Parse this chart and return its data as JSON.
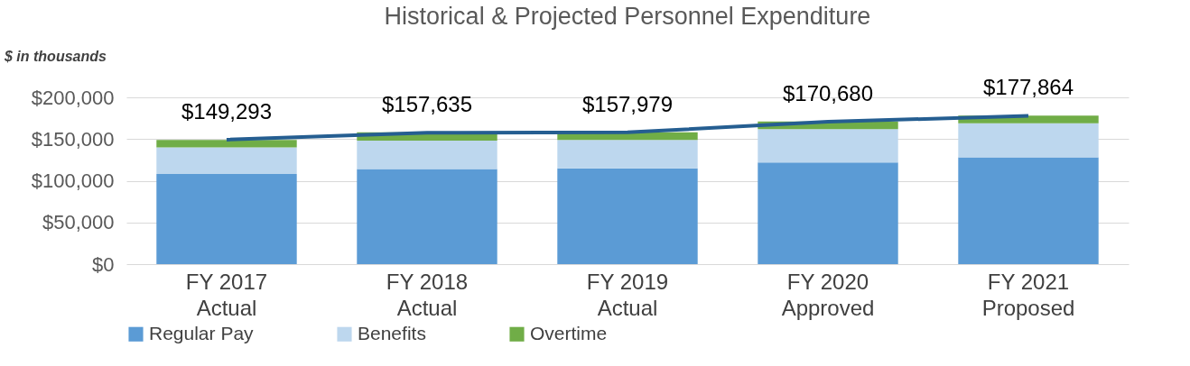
{
  "chart_data": {
    "type": "bar",
    "stacked": true,
    "title": "Historical & Projected Personnel Expenditure",
    "annotations": [
      "$ in thousands"
    ],
    "categories": [
      "FY 2017\nActual",
      "FY 2018\nActual",
      "FY 2019\nActual",
      "FY 2020\nApproved",
      "FY 2021\nProposed"
    ],
    "series": [
      {
        "name": "Regular Pay",
        "color": "#5b9bd5",
        "values": [
          108000,
          114000,
          115000,
          122000,
          128000
        ]
      },
      {
        "name": "Benefits",
        "color": "#bdd7ee",
        "values": [
          32000,
          34000,
          34000,
          40000,
          41000
        ]
      },
      {
        "name": "Overtime",
        "color": "#70ad47",
        "values": [
          9000,
          10000,
          9000,
          9000,
          9000
        ]
      },
      {
        "type": "line",
        "color": "#255e91",
        "values": [
          149293,
          157635,
          157979,
          170680,
          177864
        ],
        "value_labels": [
          "$149,293",
          "$157,635",
          "$157,979",
          "$170,680",
          "$177,864"
        ]
      }
    ],
    "ylim": [
      0,
      200000
    ],
    "yticks": [
      {
        "value": 0,
        "label": "$0"
      },
      {
        "value": 50000,
        "label": "$50,000"
      },
      {
        "value": 100000,
        "label": "$100,000"
      },
      {
        "value": 150000,
        "label": "$150,000"
      },
      {
        "value": 200000,
        "label": "$200,000"
      }
    ],
    "grid": "y",
    "legend": "bottom",
    "marker": "none"
  }
}
